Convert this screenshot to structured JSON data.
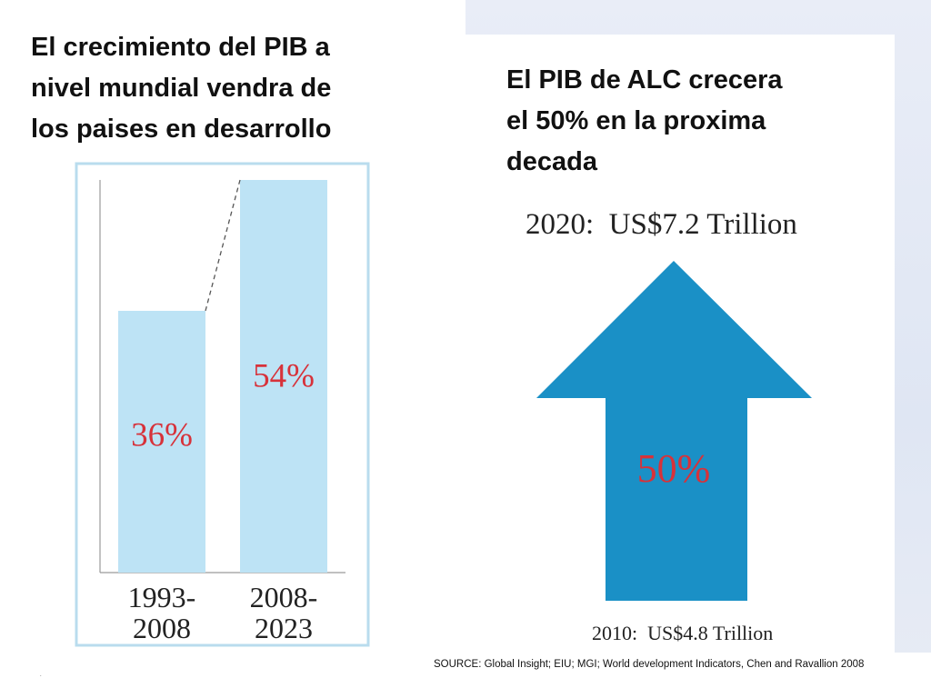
{
  "slide": {
    "left_title_lines": [
      "El crecimiento del PIB a",
      "nivel mundial vendra de",
      "los paises en desarrollo"
    ],
    "right_title_lines": [
      "El PIB de ALC crecera",
      "el 50% en la proxima",
      "decada"
    ],
    "source": "SOURCE: Global Insight; EIU; MGI; World development Indicators, Chen and Ravallion 2008",
    "dot": "."
  },
  "colors": {
    "bar_fill": "#bde3f5",
    "label_red": "#d7323a",
    "arrow_fill": "#1a90c6",
    "frame": "#b9dcee"
  },
  "chart_data": [
    {
      "type": "bar",
      "categories": [
        [
          "1993-",
          "2008"
        ],
        [
          "2008-",
          "2023"
        ]
      ],
      "values": [
        36,
        54
      ],
      "data_labels": [
        "36%",
        "54%"
      ],
      "ylim": [
        0,
        60
      ],
      "xlabel": "",
      "ylabel": "",
      "grid": false
    },
    {
      "type": "other",
      "start": {
        "year": "2010",
        "label": "2010:  US$4.8 Trillion",
        "value": 4.8
      },
      "end": {
        "year": "2020",
        "label": "2020:  US$7.2 Trillion",
        "value": 7.2
      },
      "growth_label": "50%",
      "unit": "US$ Trillion"
    }
  ]
}
